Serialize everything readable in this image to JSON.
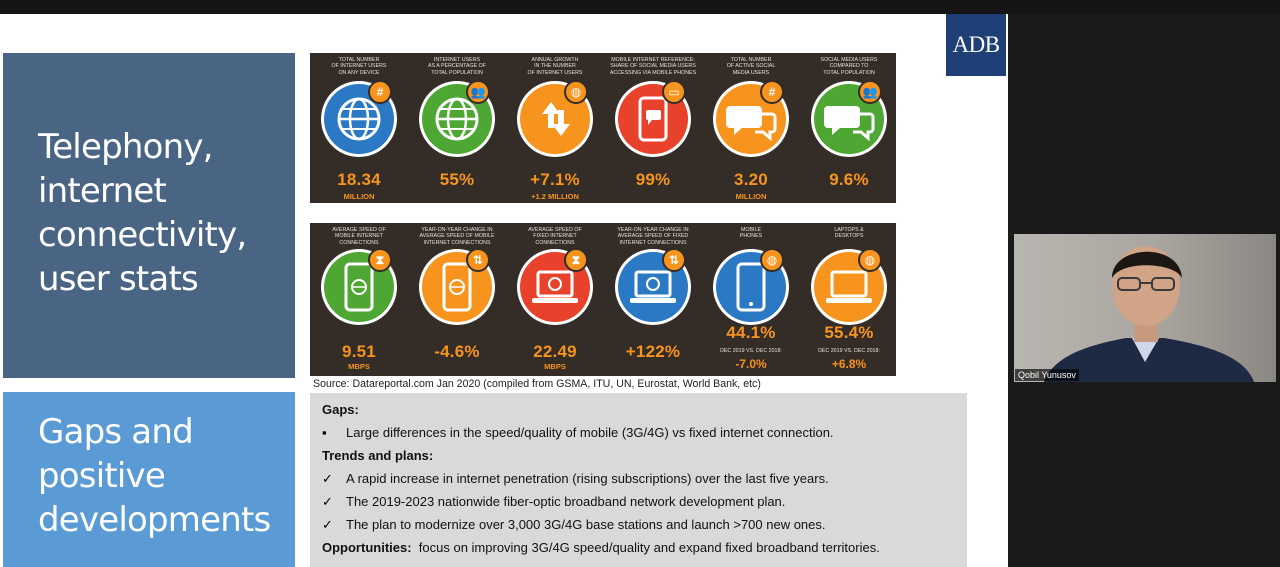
{
  "logo": {
    "text": "ADB",
    "color": "#1f3f77"
  },
  "panels": [
    {
      "lines": [
        "Telephony,",
        "internet",
        "connectivity,",
        "user stats"
      ],
      "color": "#4a6584"
    },
    {
      "lines": [
        "Gaps and",
        "positive",
        "developments"
      ],
      "color": "#5b9bd5"
    }
  ],
  "stats_row1": [
    {
      "title": [
        "TOTAL NUMBER",
        "OF INTERNET USERS",
        "ON ANY DEVICE"
      ],
      "value": "18.34",
      "sub": "MILLION",
      "icon": "globe-icon",
      "badge": "#",
      "color": "#2b78c5"
    },
    {
      "title": [
        "INTERNET USERS",
        "AS A PERCENTAGE OF",
        "TOTAL POPULATION"
      ],
      "value": "55%",
      "sub": "",
      "icon": "globe-icon",
      "badge": "people",
      "color": "#4ea733"
    },
    {
      "title": [
        "ANNUAL GROWTH",
        "IN THE NUMBER",
        "OF INTERNET USERS"
      ],
      "value": "+7.1%",
      "sub": "+1.2 MILLION",
      "icon": "arrows-icon",
      "badge": "globe",
      "color": "#f7941d"
    },
    {
      "title": [
        "MOBILE INTERNET REFERENCE:",
        "SHARE OF SOCIAL MEDIA USERS",
        "ACCESSING VIA MOBILE PHONES"
      ],
      "value": "99%",
      "sub": "",
      "icon": "phone-chat-icon",
      "badge": "chat",
      "color": "#e8422c"
    },
    {
      "title": [
        "TOTAL NUMBER",
        "OF ACTIVE SOCIAL",
        "MEDIA USERS"
      ],
      "value": "3.20",
      "sub": "MILLION",
      "icon": "chat-bubbles-icon",
      "badge": "#",
      "color": "#f7941d"
    },
    {
      "title": [
        "SOCIAL MEDIA USERS",
        "COMPARED TO",
        "TOTAL POPULATION"
      ],
      "value": "9.6%",
      "sub": "",
      "icon": "chat-bubbles-icon",
      "badge": "people",
      "color": "#4ea733"
    }
  ],
  "stats_row2": [
    {
      "title": [
        "AVERAGE SPEED OF",
        "MOBILE INTERNET",
        "CONNECTIONS"
      ],
      "value": "9.51",
      "sub": "MBPS",
      "icon": "phone-globe-icon",
      "badge": "hourglass",
      "color": "#4ea733"
    },
    {
      "title": [
        "YEAR-ON-YEAR CHANGE IN",
        "AVERAGE SPEED OF MOBILE",
        "INTERNET CONNECTIONS"
      ],
      "value": "-4.6%",
      "sub": "",
      "icon": "phone-globe-icon",
      "badge": "arrows",
      "color": "#f7941d"
    },
    {
      "title": [
        "AVERAGE SPEED OF",
        "FIXED INTERNET",
        "CONNECTIONS"
      ],
      "value": "22.49",
      "sub": "MBPS",
      "icon": "laptop-globe-icon",
      "badge": "hourglass",
      "color": "#e8422c"
    },
    {
      "title": [
        "YEAR-ON-YEAR CHANGE IN",
        "AVERAGE SPEED OF FIXED",
        "INTERNET CONNECTIONS"
      ],
      "value": "+122%",
      "sub": "",
      "icon": "laptop-globe-icon",
      "badge": "arrows",
      "color": "#2b78c5"
    },
    {
      "title": [
        "MOBILE",
        "PHONES",
        ""
      ],
      "value": "44.1%",
      "note": "DEC 2019 vs. DEC 2018:",
      "change": "-7.0%",
      "icon": "phone-icon",
      "badge": "globe",
      "color": "#2b78c5"
    },
    {
      "title": [
        "LAPTOPS &",
        "DESKTOPS",
        ""
      ],
      "value": "55.4%",
      "note": "DEC 2019 vs. DEC 2018:",
      "change": "+6.8%",
      "icon": "laptop-icon",
      "badge": "globe",
      "color": "#f7941d"
    }
  ],
  "source": "Source: Datareportal.com Jan 2020 (compiled from GSMA, ITU, UN, Eurostat, World Bank, etc)",
  "gaps": {
    "gaps_heading": "Gaps:",
    "gaps_item": "Large differences in the speed/quality of mobile (3G/4G) vs fixed internet connection.",
    "trends_heading": "Trends and plans:",
    "trends": [
      "A rapid increase in internet penetration (rising subscriptions) over the last five years.",
      "The 2019-2023 nationwide fiber-optic broadband network development plan.",
      "The plan to modernize over 3,000 3G/4G base stations and launch >700 new ones."
    ],
    "opp_label": "Opportunities:",
    "opp_text": "focus on improving 3G/4G speed/quality and expand fixed broadband territories.",
    "bullet": "▪",
    "check": "✓"
  },
  "video": {
    "participant_name": "Qobil Yunusov"
  }
}
